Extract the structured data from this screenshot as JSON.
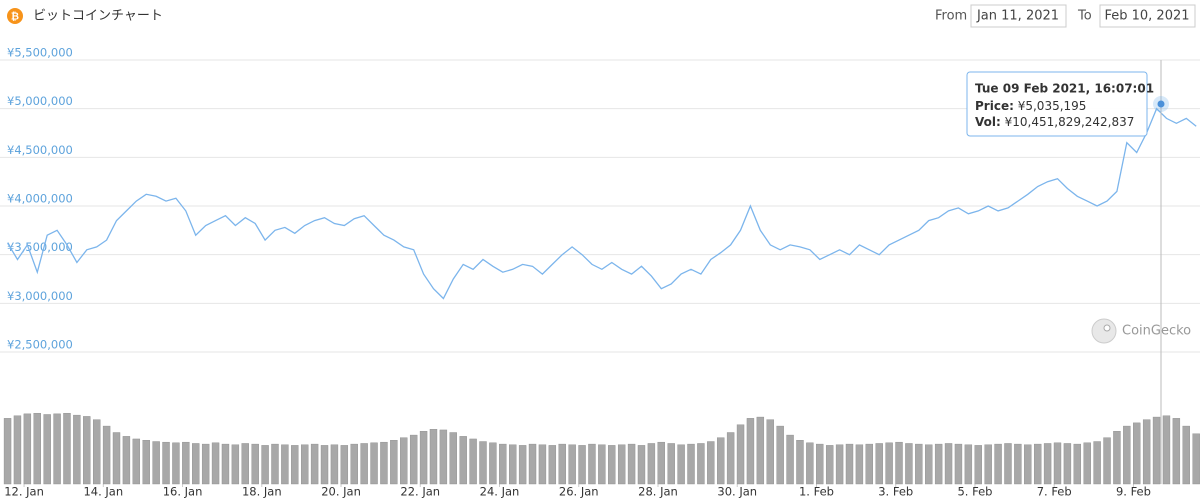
{
  "controls": {
    "from_label": "From",
    "from_value": "Jan 11, 2021",
    "to_label": "To",
    "to_value": "Feb 10, 2021"
  },
  "chart_data": {
    "type": "line",
    "title": "ビットコインチャート",
    "color": "#7cb5ec",
    "grid": true,
    "watermark": "CoinGecko",
    "xlim": [
      "2021-01-11T13:40",
      "2021-02-10T14:30"
    ],
    "xticks": [
      {
        "value": "2021-01-12T00:00",
        "label": "12. Jan"
      },
      {
        "value": "2021-01-14T00:00",
        "label": "14. Jan"
      },
      {
        "value": "2021-01-16T00:00",
        "label": "16. Jan"
      },
      {
        "value": "2021-01-18T00:00",
        "label": "18. Jan"
      },
      {
        "value": "2021-01-20T00:00",
        "label": "20. Jan"
      },
      {
        "value": "2021-01-22T00:00",
        "label": "22. Jan"
      },
      {
        "value": "2021-01-24T00:00",
        "label": "24. Jan"
      },
      {
        "value": "2021-01-26T00:00",
        "label": "26. Jan"
      },
      {
        "value": "2021-01-28T00:00",
        "label": "28. Jan"
      },
      {
        "value": "2021-01-30T00:00",
        "label": "30. Jan"
      },
      {
        "value": "2021-02-01T00:00",
        "label": "1. Feb"
      },
      {
        "value": "2021-02-03T00:00",
        "label": "3. Feb"
      },
      {
        "value": "2021-02-05T00:00",
        "label": "5. Feb"
      },
      {
        "value": "2021-02-07T00:00",
        "label": "7. Feb"
      },
      {
        "value": "2021-02-09T00:00",
        "label": "9. Feb"
      }
    ],
    "ylim": [
      2500000,
      5500000
    ],
    "yticks": [
      {
        "value": 2500000,
        "label": "¥2,500,000"
      },
      {
        "value": 3000000,
        "label": "¥3,000,000"
      },
      {
        "value": 3500000,
        "label": "¥3,500,000"
      },
      {
        "value": 4000000,
        "label": "¥4,000,000"
      },
      {
        "value": 4500000,
        "label": "¥4,500,000"
      },
      {
        "value": 5000000,
        "label": "¥5,000,000"
      },
      {
        "value": 5500000,
        "label": "¥5,500,000"
      }
    ],
    "x": [
      "2021-01-11T14:00",
      "2021-01-11T20:00",
      "2021-01-12T02:00",
      "2021-01-12T08:00",
      "2021-01-12T14:00",
      "2021-01-12T20:00",
      "2021-01-13T02:00",
      "2021-01-13T08:00",
      "2021-01-13T14:00",
      "2021-01-13T20:00",
      "2021-01-14T02:00",
      "2021-01-14T08:00",
      "2021-01-14T14:00",
      "2021-01-14T20:00",
      "2021-01-15T02:00",
      "2021-01-15T08:00",
      "2021-01-15T14:00",
      "2021-01-15T20:00",
      "2021-01-16T02:00",
      "2021-01-16T08:00",
      "2021-01-16T14:00",
      "2021-01-16T20:00",
      "2021-01-17T02:00",
      "2021-01-17T08:00",
      "2021-01-17T14:00",
      "2021-01-17T20:00",
      "2021-01-18T02:00",
      "2021-01-18T08:00",
      "2021-01-18T14:00",
      "2021-01-18T20:00",
      "2021-01-19T02:00",
      "2021-01-19T08:00",
      "2021-01-19T14:00",
      "2021-01-19T20:00",
      "2021-01-20T02:00",
      "2021-01-20T08:00",
      "2021-01-20T14:00",
      "2021-01-20T20:00",
      "2021-01-21T02:00",
      "2021-01-21T08:00",
      "2021-01-21T14:00",
      "2021-01-21T20:00",
      "2021-01-22T02:00",
      "2021-01-22T08:00",
      "2021-01-22T14:00",
      "2021-01-22T20:00",
      "2021-01-23T02:00",
      "2021-01-23T08:00",
      "2021-01-23T14:00",
      "2021-01-23T20:00",
      "2021-01-24T02:00",
      "2021-01-24T08:00",
      "2021-01-24T14:00",
      "2021-01-24T20:00",
      "2021-01-25T02:00",
      "2021-01-25T08:00",
      "2021-01-25T14:00",
      "2021-01-25T20:00",
      "2021-01-26T02:00",
      "2021-01-26T08:00",
      "2021-01-26T14:00",
      "2021-01-26T20:00",
      "2021-01-27T02:00",
      "2021-01-27T08:00",
      "2021-01-27T14:00",
      "2021-01-27T20:00",
      "2021-01-28T02:00",
      "2021-01-28T08:00",
      "2021-01-28T14:00",
      "2021-01-28T20:00",
      "2021-01-29T02:00",
      "2021-01-29T08:00",
      "2021-01-29T14:00",
      "2021-01-29T20:00",
      "2021-01-30T02:00",
      "2021-01-30T08:00",
      "2021-01-30T14:00",
      "2021-01-30T20:00",
      "2021-01-31T02:00",
      "2021-01-31T08:00",
      "2021-01-31T14:00",
      "2021-01-31T20:00",
      "2021-02-01T02:00",
      "2021-02-01T08:00",
      "2021-02-01T14:00",
      "2021-02-01T20:00",
      "2021-02-02T02:00",
      "2021-02-02T08:00",
      "2021-02-02T14:00",
      "2021-02-02T20:00",
      "2021-02-03T02:00",
      "2021-02-03T08:00",
      "2021-02-03T14:00",
      "2021-02-03T20:00",
      "2021-02-04T02:00",
      "2021-02-04T08:00",
      "2021-02-04T14:00",
      "2021-02-04T20:00",
      "2021-02-05T02:00",
      "2021-02-05T08:00",
      "2021-02-05T14:00",
      "2021-02-05T20:00",
      "2021-02-06T02:00",
      "2021-02-06T08:00",
      "2021-02-06T14:00",
      "2021-02-06T20:00",
      "2021-02-07T02:00",
      "2021-02-07T08:00",
      "2021-02-07T14:00",
      "2021-02-07T20:00",
      "2021-02-08T02:00",
      "2021-02-08T08:00",
      "2021-02-08T14:00",
      "2021-02-08T20:00",
      "2021-02-09T02:00",
      "2021-02-09T08:00",
      "2021-02-09T14:00",
      "2021-02-09T20:00",
      "2021-02-10T02:00",
      "2021-02-10T08:00",
      "2021-02-10T14:00"
    ],
    "values": [
      3620000,
      3450000,
      3600000,
      3320000,
      3700000,
      3750000,
      3600000,
      3420000,
      3550000,
      3580000,
      3650000,
      3850000,
      3950000,
      4050000,
      4120000,
      4100000,
      4050000,
      4080000,
      3950000,
      3700000,
      3800000,
      3850000,
      3900000,
      3800000,
      3880000,
      3820000,
      3650000,
      3750000,
      3780000,
      3720000,
      3800000,
      3850000,
      3880000,
      3820000,
      3800000,
      3870000,
      3900000,
      3800000,
      3700000,
      3650000,
      3580000,
      3550000,
      3300000,
      3150000,
      3050000,
      3250000,
      3400000,
      3350000,
      3450000,
      3380000,
      3320000,
      3350000,
      3400000,
      3380000,
      3300000,
      3400000,
      3500000,
      3580000,
      3500000,
      3400000,
      3350000,
      3420000,
      3350000,
      3300000,
      3380000,
      3280000,
      3150000,
      3200000,
      3300000,
      3350000,
      3300000,
      3450000,
      3520000,
      3600000,
      3750000,
      4000000,
      3750000,
      3600000,
      3550000,
      3600000,
      3580000,
      3550000,
      3450000,
      3500000,
      3550000,
      3500000,
      3600000,
      3550000,
      3500000,
      3600000,
      3650000,
      3700000,
      3750000,
      3850000,
      3880000,
      3950000,
      3980000,
      3920000,
      3950000,
      4000000,
      3950000,
      3980000,
      4050000,
      4120000,
      4200000,
      4250000,
      4280000,
      4180000,
      4100000,
      4050000,
      4000000,
      4050000,
      4150000,
      4650000,
      4550000,
      4750000,
      5000000,
      4900000,
      4850000,
      4900000,
      4820000
    ],
    "volume": {
      "type": "bar",
      "color": "#a8a8a8",
      "ylim": [
        0,
        17400000000000
      ],
      "values": [
        10200000000000,
        10600000000000,
        10900000000000,
        11000000000000,
        10800000000000,
        10900000000000,
        11000000000000,
        10700000000000,
        10500000000000,
        10000000000000,
        9000000000000,
        8000000000000,
        7400000000000,
        7000000000000,
        6800000000000,
        6600000000000,
        6500000000000,
        6400000000000,
        6500000000000,
        6300000000000,
        6200000000000,
        6400000000000,
        6200000000000,
        6100000000000,
        6300000000000,
        6200000000000,
        6000000000000,
        6200000000000,
        6100000000000,
        6000000000000,
        6100000000000,
        6200000000000,
        6000000000000,
        6100000000000,
        6000000000000,
        6200000000000,
        6300000000000,
        6400000000000,
        6500000000000,
        6800000000000,
        7200000000000,
        7600000000000,
        8200000000000,
        8500000000000,
        8400000000000,
        8000000000000,
        7400000000000,
        7000000000000,
        6600000000000,
        6400000000000,
        6200000000000,
        6100000000000,
        6000000000000,
        6200000000000,
        6100000000000,
        6000000000000,
        6200000000000,
        6100000000000,
        6000000000000,
        6200000000000,
        6100000000000,
        6000000000000,
        6100000000000,
        6200000000000,
        6000000000000,
        6300000000000,
        6500000000000,
        6300000000000,
        6100000000000,
        6200000000000,
        6300000000000,
        6600000000000,
        7200000000000,
        8000000000000,
        9200000000000,
        10200000000000,
        10400000000000,
        10000000000000,
        9000000000000,
        7600000000000,
        6800000000000,
        6400000000000,
        6200000000000,
        6000000000000,
        6100000000000,
        6200000000000,
        6100000000000,
        6200000000000,
        6300000000000,
        6400000000000,
        6500000000000,
        6300000000000,
        6200000000000,
        6100000000000,
        6200000000000,
        6300000000000,
        6200000000000,
        6100000000000,
        6000000000000,
        6100000000000,
        6200000000000,
        6300000000000,
        6200000000000,
        6100000000000,
        6200000000000,
        6300000000000,
        6400000000000,
        6300000000000,
        6200000000000,
        6400000000000,
        6600000000000,
        7200000000000,
        8200000000000,
        9000000000000,
        9500000000000,
        10000000000000,
        10400000000000,
        10600000000000,
        10200000000000,
        9000000000000,
        7800000000000
      ]
    },
    "tooltip": {
      "time": "Tue 09 Feb 2021, 16:07:01",
      "price_label": "Price:",
      "price": "¥5,035,195",
      "vol_label": "Vol:",
      "vol": "¥10,451,829,242,837"
    }
  }
}
